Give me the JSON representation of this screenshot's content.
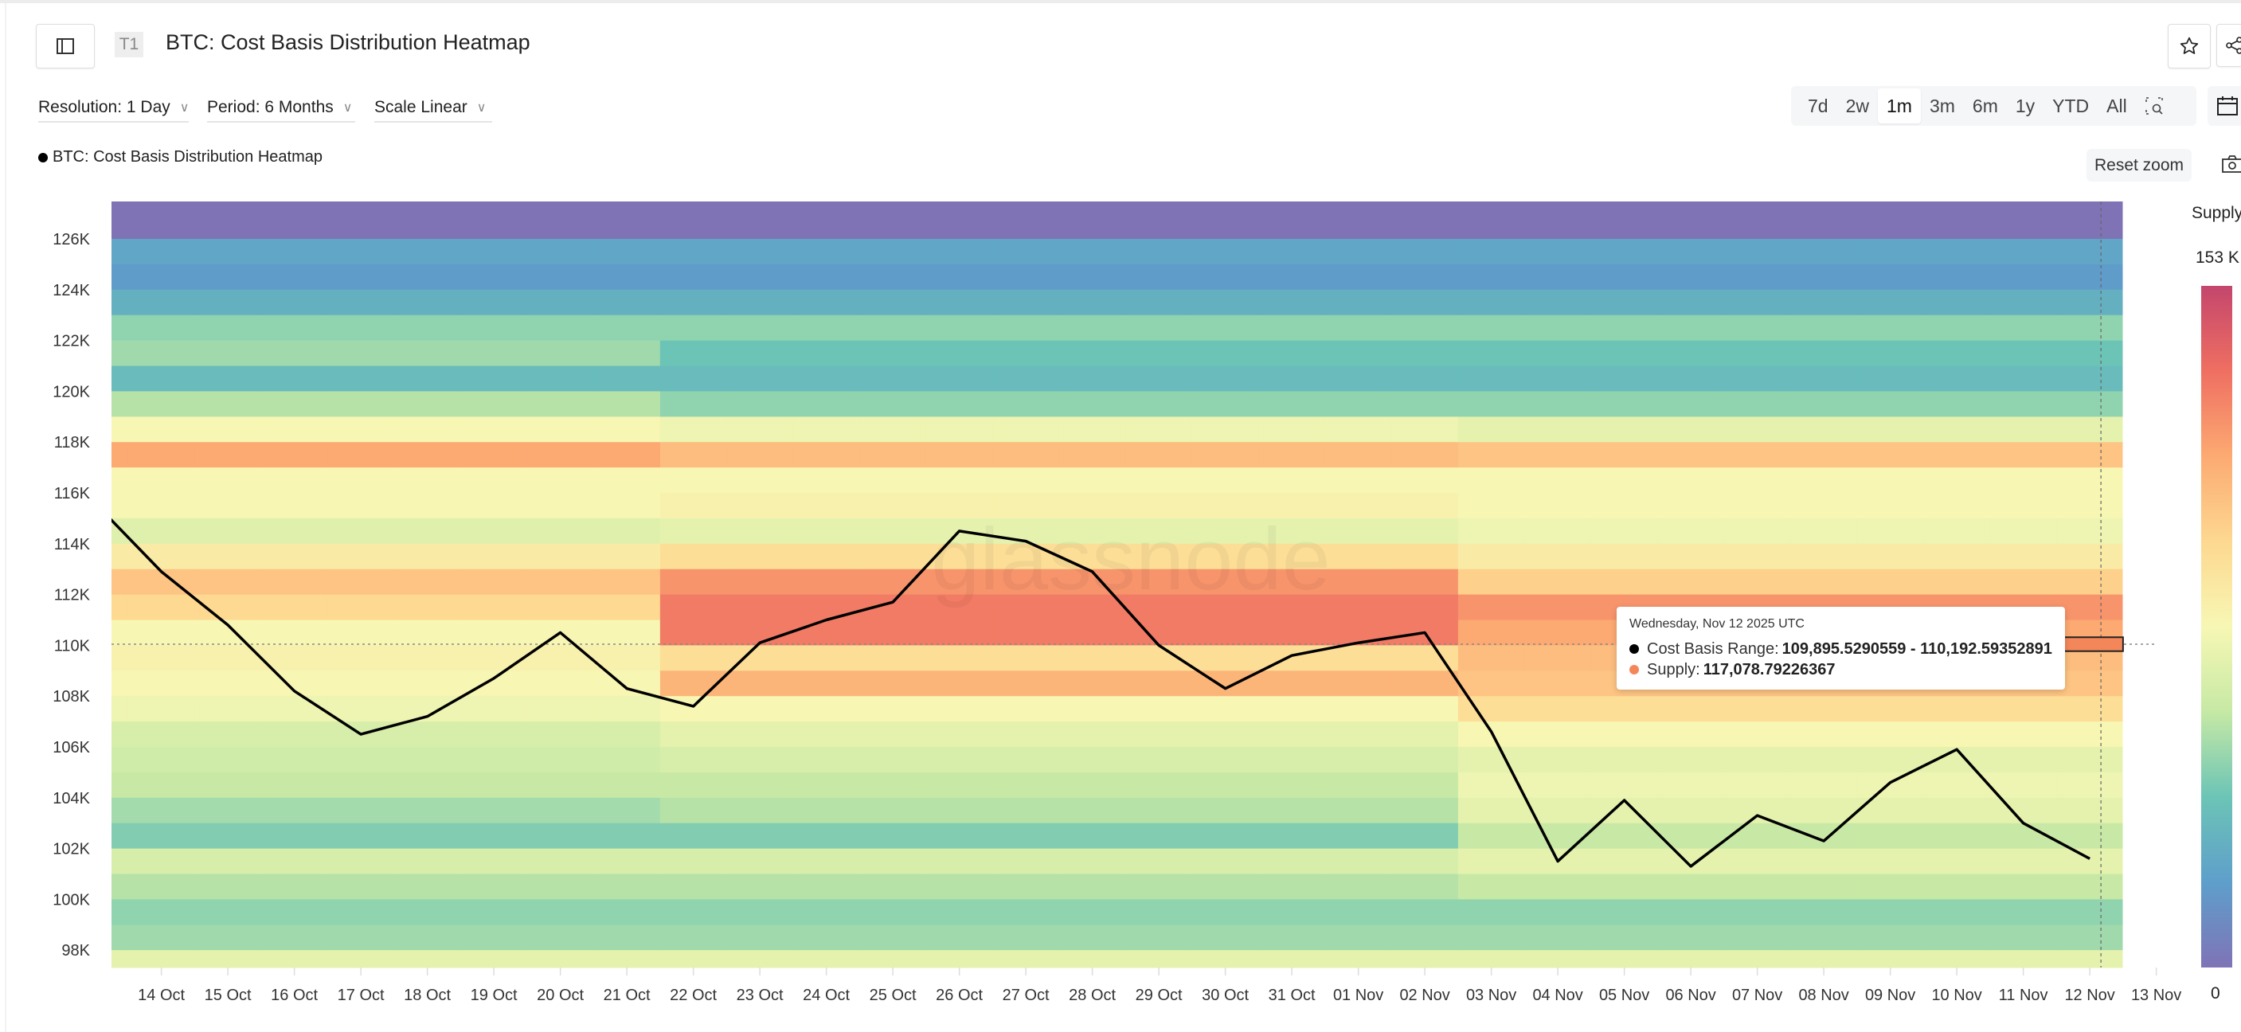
{
  "header": {
    "badge": "T1",
    "title": "BTC: Cost Basis Distribution Heatmap",
    "sidebar_toggle_icon": "sidebar-icon",
    "star_icon": "star-icon",
    "share_icon": "share-icon"
  },
  "controls": {
    "resolution": "Resolution: 1 Day",
    "period": "Period: 6 Months",
    "scale": "Scale Linear",
    "ranges": [
      "7d",
      "2w",
      "1m",
      "3m",
      "6m",
      "1y",
      "YTD",
      "All"
    ],
    "active_range": "1m",
    "reset_zoom": "Reset zoom"
  },
  "legend": {
    "label": "BTC: Cost Basis Distribution Heatmap"
  },
  "colorbar": {
    "title": "Supply",
    "max_label": "153 K",
    "min_label": "0",
    "colors": [
      "#7f73b6",
      "#5e9fcb",
      "#6cc4b6",
      "#c6e9a5",
      "#f7f7b4",
      "#fdd890",
      "#fcaa72",
      "#ef6f62",
      "#c4466c"
    ]
  },
  "tooltip": {
    "date": "Wednesday, Nov 12 2025 UTC",
    "range_label": "Cost Basis Range: ",
    "range_value": "109,895.5290559 - 110,192.59352891",
    "supply_label": "Supply: ",
    "supply_value": "117,078.79226367",
    "range_dot_color": "#000000",
    "supply_dot_color": "#f4875a"
  },
  "watermark": "glassnode",
  "chart_data": {
    "type": "heatmap",
    "title": "BTC: Cost Basis Distribution Heatmap",
    "y_ticks": [
      "98K",
      "100K",
      "102K",
      "104K",
      "106K",
      "108K",
      "110K",
      "112K",
      "114K",
      "116K",
      "118K",
      "120K",
      "122K",
      "124K",
      "126K"
    ],
    "y_tick_values": [
      98,
      100,
      102,
      104,
      106,
      108,
      110,
      112,
      114,
      116,
      118,
      120,
      122,
      124,
      126
    ],
    "ylim_k": [
      97.3,
      127.5
    ],
    "x_ticks": [
      "14 Oct",
      "15 Oct",
      "16 Oct",
      "17 Oct",
      "18 Oct",
      "19 Oct",
      "20 Oct",
      "21 Oct",
      "22 Oct",
      "23 Oct",
      "24 Oct",
      "25 Oct",
      "26 Oct",
      "27 Oct",
      "28 Oct",
      "29 Oct",
      "30 Oct",
      "31 Oct",
      "01 Nov",
      "02 Nov",
      "03 Nov",
      "04 Nov",
      "05 Nov",
      "06 Nov",
      "07 Nov",
      "08 Nov",
      "09 Nov",
      "10 Nov",
      "11 Nov",
      "12 Nov",
      "13 Nov"
    ],
    "color_scale_max_k": 153,
    "heatmap": {
      "price_bins_k": [
        127,
        126,
        125,
        124,
        123,
        122,
        121,
        120,
        119,
        118,
        117,
        116,
        115,
        114,
        113,
        112,
        111,
        110,
        109,
        108,
        107,
        106,
        105,
        104,
        103,
        102,
        101,
        100,
        99,
        98,
        97
      ],
      "periods": [
        {
          "from": "13 Oct",
          "to": "21 Oct",
          "supply_k": [
            0,
            0,
            23,
            18,
            28,
            46,
            49,
            34,
            54,
            77,
            115,
            77,
            77,
            67,
            84,
            104,
            95,
            77,
            80,
            77,
            73,
            64,
            61,
            58,
            50,
            43,
            64,
            54,
            46,
            49,
            69
          ]
        },
        {
          "from": "22 Oct",
          "to": "02 Nov",
          "supply_k": [
            0,
            0,
            23,
            18,
            28,
            46,
            38,
            34,
            46,
            73,
            107,
            77,
            80,
            69,
            92,
            122,
            130,
            130,
            92,
            110,
            77,
            69,
            64,
            58,
            54,
            43,
            64,
            54,
            46,
            49,
            69
          ]
        },
        {
          "from": "03 Nov",
          "to": "12 Nov",
          "supply_k": [
            0,
            0,
            23,
            18,
            28,
            46,
            38,
            34,
            46,
            69,
            104,
            77,
            77,
            73,
            84,
            99,
            122,
            115,
            107,
            104,
            92,
            77,
            69,
            73,
            69,
            58,
            69,
            58,
            46,
            49,
            69
          ]
        }
      ]
    },
    "price_line": {
      "dates": [
        "13 Oct",
        "14 Oct",
        "15 Oct",
        "16 Oct",
        "17 Oct",
        "18 Oct",
        "19 Oct",
        "20 Oct",
        "21 Oct",
        "22 Oct",
        "23 Oct",
        "24 Oct",
        "25 Oct",
        "26 Oct",
        "27 Oct",
        "28 Oct",
        "29 Oct",
        "30 Oct",
        "31 Oct",
        "01 Nov",
        "02 Nov",
        "03 Nov",
        "04 Nov",
        "05 Nov",
        "06 Nov",
        "07 Nov",
        "08 Nov",
        "09 Nov",
        "10 Nov",
        "11 Nov",
        "12 Nov"
      ],
      "price_k": [
        115.6,
        112.9,
        110.8,
        108.2,
        106.5,
        107.2,
        108.7,
        110.5,
        108.3,
        107.6,
        110.1,
        111.0,
        111.7,
        114.5,
        114.1,
        112.9,
        110.0,
        108.3,
        109.6,
        110.1,
        110.5,
        106.6,
        101.5,
        103.9,
        101.3,
        103.3,
        102.3,
        104.6,
        105.9,
        103.0,
        101.6
      ],
      "color": "#000000"
    },
    "highlight": {
      "date": "12 Nov",
      "price_bin_k": [
        109.8955,
        110.1926
      ]
    }
  }
}
